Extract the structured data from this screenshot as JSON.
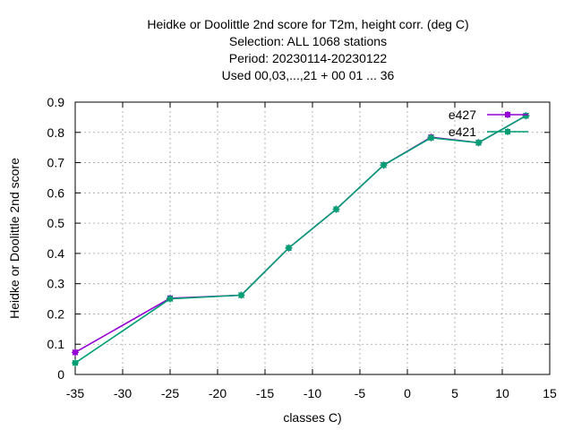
{
  "chart_data": {
    "type": "line",
    "title_lines": [
      "Heidke or Doolittle 2nd score  for T2m, height corr. (deg C)",
      "Selection: ALL   1068 stations",
      "Period: 20230114-20230122",
      "Used  00,03,...,21  + 00 01 ... 36"
    ],
    "xlabel": "classes C)",
    "ylabel": "Heidke or Doolittle 2nd score",
    "xlim": [
      -35,
      15
    ],
    "ylim": [
      0,
      0.9
    ],
    "xticks": [
      "-35",
      "-30",
      "-25",
      "-20",
      "-15",
      "-10",
      "-5",
      "0",
      "5",
      "10",
      "15"
    ],
    "yticks": [
      "0",
      "0.1",
      "0.2",
      "0.3",
      "0.4",
      "0.5",
      "0.6",
      "0.7",
      "0.8",
      "0.9"
    ],
    "grid": true,
    "legend_position": "top-right",
    "series": [
      {
        "name": "e427",
        "color": "#9400d3",
        "x": [
          -35,
          -25,
          -17.5,
          -12.5,
          -7.5,
          -2.5,
          2.5,
          7.5,
          12.5
        ],
        "y": [
          0.073,
          0.252,
          0.262,
          0.418,
          0.546,
          0.692,
          0.784,
          0.766,
          0.855
        ]
      },
      {
        "name": "e421",
        "color": "#009e73",
        "x": [
          -35,
          -25,
          -17.5,
          -12.5,
          -7.5,
          -2.5,
          2.5,
          7.5,
          12.5
        ],
        "y": [
          0.038,
          0.25,
          0.262,
          0.418,
          0.546,
          0.692,
          0.782,
          0.766,
          0.855
        ]
      }
    ]
  }
}
